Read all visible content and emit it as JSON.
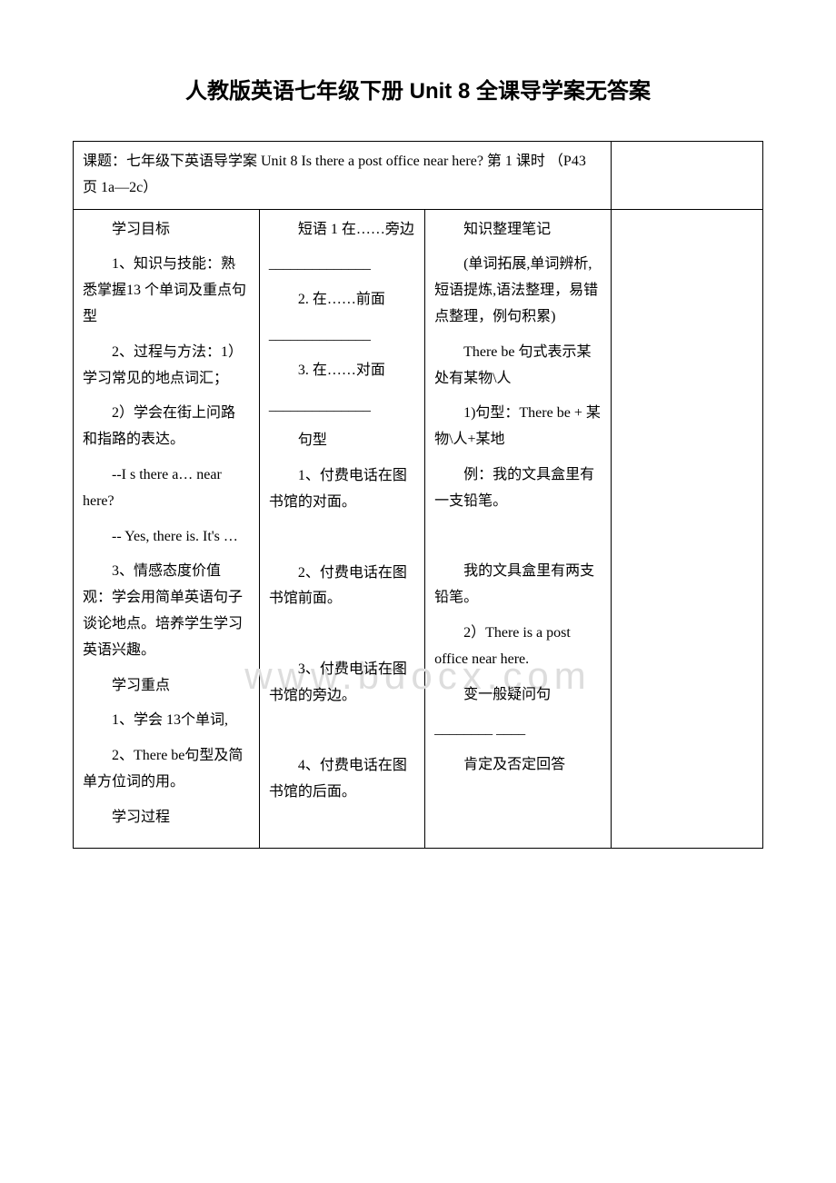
{
  "title": "人教版英语七年级下册 Unit 8 全课导学案无答案",
  "header_row": "课题：七年级下英语导学案   Unit 8 Is there a post office near here? 第 1 课时  （P43 页 1a—2c）",
  "col1": {
    "h1": "学习目标",
    "p1": "1、知识与技能：熟悉掌握13 个单词及重点句型",
    "p2": "2、过程与方法：1）学习常见的地点词汇；",
    "p3": "2）学会在街上问路和指路的表达。",
    "p4": "--I s there a… near here?",
    "p5": "-- Yes, there is. It's …",
    "p6": "3、情感态度价值观：学会用简单英语句子谈论地点。培养学生学习英语兴趣。",
    "h2": "学习重点",
    "p7": "1、学会 13个单词,",
    "p8": "2、There be句型及简单方位词的用。",
    "h3": "学习过程"
  },
  "col2": {
    "p1a": "短语 1 在……旁边",
    "p1b": "______________",
    "p2a": "2. 在……前面",
    "p2b": "______________",
    "p3a": "3. 在……对面",
    "p3b": "______________",
    "h1": "句型",
    "p4": "1、付费电话在图书馆的对面。",
    "p5": "2、付费电话在图书馆前面。",
    "p6": "3、付费电话在图书馆的旁边。",
    "p7": "4、付费电话在图书馆的后面。"
  },
  "col3": {
    "h1": "知识整理笔记",
    "p1": "(单词拓展,单词辨析,短语提炼,语法整理，易错点整理，例句积累)",
    "p2": "There be 句式表示某处有某物\\人",
    "p3": "1)句型：There be + 某物\\人+某地",
    "p4": "例：我的文具盒里有一支铅笔。",
    "p5": "我的文具盒里有两支铅笔。",
    "p6": "2）There is a post office near here.",
    "p7": "变一般疑问句",
    "p8": "________ ____",
    "p9": "肯定及否定回答"
  },
  "watermark_text": "www.bdocx.com"
}
